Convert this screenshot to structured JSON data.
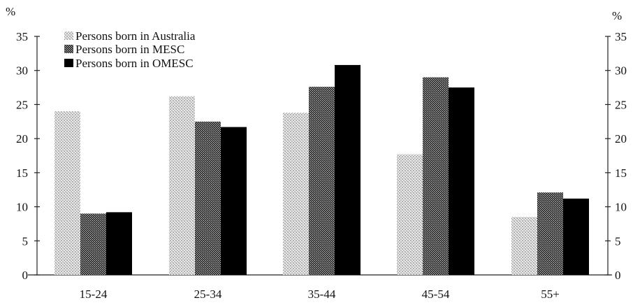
{
  "chart_data": {
    "type": "bar",
    "unit_left": "%",
    "unit_right": "%",
    "categories": [
      "15-24",
      "25-34",
      "35-44",
      "45-54",
      "55+"
    ],
    "series": [
      {
        "name": "Persons born in Australia",
        "values": [
          24,
          26.2,
          23.8,
          17.7,
          8.5
        ],
        "pattern": "light",
        "color": "#c9c9c9"
      },
      {
        "name": "Persons born in MESC",
        "values": [
          9,
          22.5,
          27.6,
          29,
          12.1
        ],
        "pattern": "dark",
        "color": "#4a4a4a"
      },
      {
        "name": "Persons born in OMESC",
        "values": [
          9.2,
          21.7,
          30.8,
          27.5,
          11.2
        ],
        "pattern": "solid",
        "color": "#000000"
      }
    ],
    "yticks": [
      0,
      5,
      10,
      15,
      20,
      25,
      30,
      35
    ],
    "ylim": [
      0,
      35
    ],
    "grid": true,
    "legend_position": "top-left",
    "xlabel": "",
    "ylabel": ""
  }
}
